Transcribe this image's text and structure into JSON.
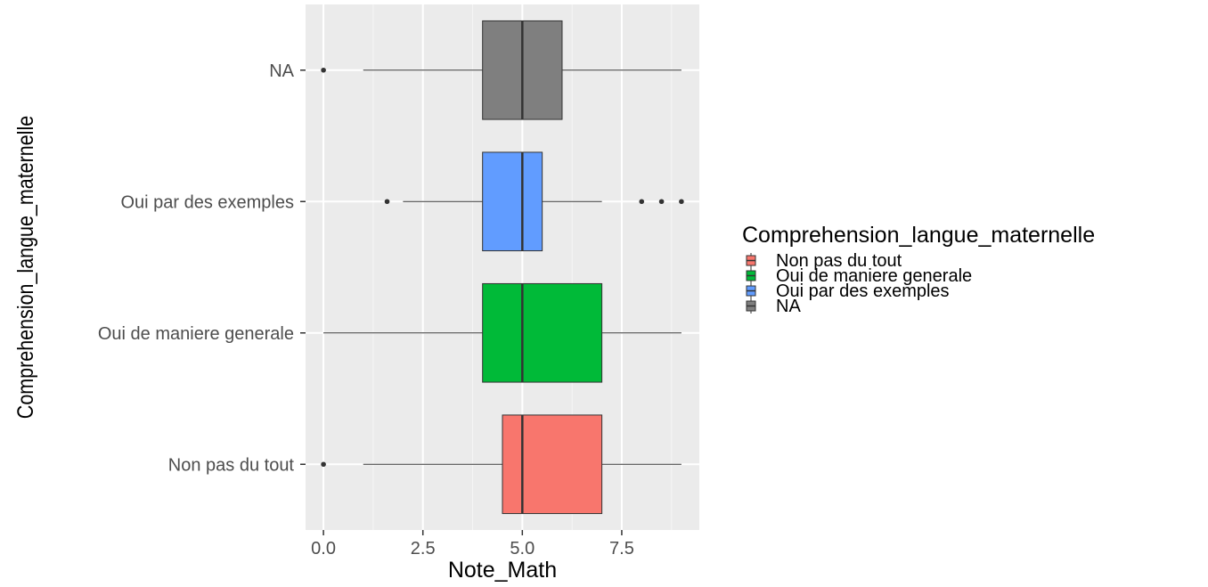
{
  "chart_data": {
    "type": "boxplot",
    "orientation": "horizontal",
    "xlabel": "Note_Math",
    "ylabel": "Comprehension_langue_maternelle",
    "xlim": [
      -0.45,
      9.45
    ],
    "xticks": [
      0.0,
      2.5,
      5.0,
      7.5
    ],
    "xtick_labels": [
      "0.0",
      "2.5",
      "5.0",
      "7.5"
    ],
    "grid": true,
    "legend": {
      "title": "Comprehension_langue_maternelle",
      "placement": "right",
      "entries": [
        "Non pas du tout",
        "Oui de maniere generale",
        "Oui par des exemples",
        "NA"
      ]
    },
    "categories": [
      "Non pas du tout",
      "Oui de maniere generale",
      "Oui par des exemples",
      "NA"
    ],
    "series": [
      {
        "category": "Non pas du tout",
        "color": "#F8766D",
        "whisker_low": 1.0,
        "q1": 4.5,
        "median": 5.0,
        "q3": 7.0,
        "whisker_high": 9.0,
        "outliers": [
          0.0
        ]
      },
      {
        "category": "Oui de maniere generale",
        "color": "#00BA38",
        "whisker_low": 0.0,
        "q1": 4.0,
        "median": 5.0,
        "q3": 7.0,
        "whisker_high": 9.0,
        "outliers": []
      },
      {
        "category": "Oui par des exemples",
        "color": "#619CFF",
        "whisker_low": 2.0,
        "q1": 4.0,
        "median": 5.0,
        "q3": 5.5,
        "whisker_high": 7.0,
        "outliers": [
          1.6,
          8.0,
          8.5,
          9.0
        ]
      },
      {
        "category": "NA",
        "color": "#7F7F7F",
        "whisker_low": 1.0,
        "q1": 4.0,
        "median": 5.0,
        "q3": 6.0,
        "whisker_high": 9.0,
        "outliers": [
          0.0
        ]
      }
    ],
    "colors": {
      "panel_background": "#EBEBEB",
      "grid_major": "#FFFFFF",
      "grid_minor": "#F5F5F5",
      "box_outline": "#333333"
    }
  }
}
